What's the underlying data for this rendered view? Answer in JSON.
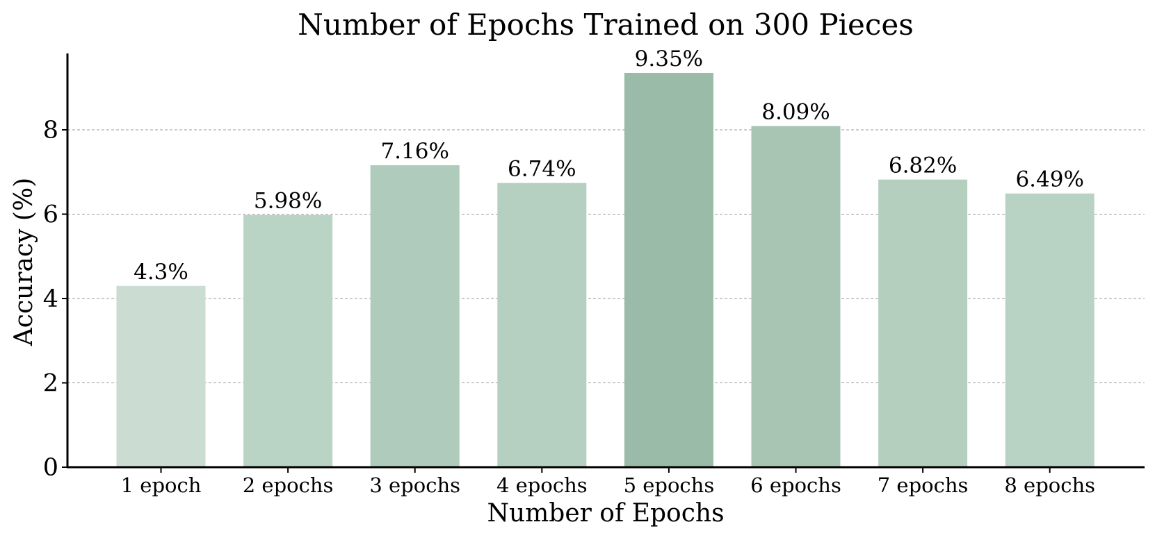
{
  "chart_data": {
    "type": "bar",
    "title": "Number of Epochs Trained on 300 Pieces",
    "xlabel": "Number of Epochs",
    "ylabel": "Accuracy (%)",
    "categories": [
      "1 epoch",
      "2 epochs",
      "3 epochs",
      "4 epochs",
      "5 epochs",
      "6 epochs",
      "7 epochs",
      "8 epochs"
    ],
    "values": [
      4.3,
      5.98,
      7.16,
      6.74,
      9.35,
      8.09,
      6.82,
      6.49
    ],
    "value_labels": [
      "4.3%",
      "5.98%",
      "7.16%",
      "6.74%",
      "9.35%",
      "8.09%",
      "6.82%",
      "6.49%"
    ],
    "bar_colors": [
      "#cbddd2",
      "#b9d3c4",
      "#aecbbc",
      "#b5cfc0",
      "#99bba7",
      "#a8c5b4",
      "#b5cfbf",
      "#b8d2c3"
    ],
    "ylim": [
      0,
      9.8
    ],
    "yticks": [
      0,
      2,
      4,
      6,
      8
    ],
    "ytick_labels": [
      "0",
      "2",
      "4",
      "6",
      "8"
    ],
    "grid": "horizontal dashed",
    "legend": "none"
  }
}
